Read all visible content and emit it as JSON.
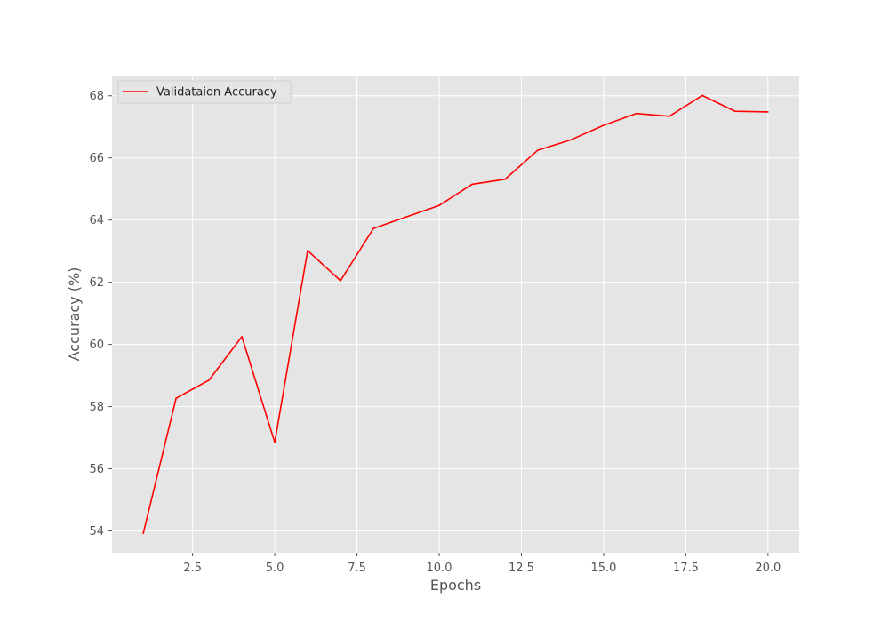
{
  "chart_data": {
    "type": "line",
    "title": "",
    "xlabel": "Epochs",
    "ylabel": "Accuracy (%)",
    "xlim": [
      0.05,
      20.95
    ],
    "ylim": [
      53.3,
      68.65
    ],
    "xticks": [
      2.5,
      5.0,
      7.5,
      10.0,
      12.5,
      15.0,
      17.5,
      20.0
    ],
    "xtick_labels": [
      "2.5",
      "5.0",
      "7.5",
      "10.0",
      "12.5",
      "15.0",
      "17.5",
      "20.0"
    ],
    "yticks": [
      54,
      56,
      58,
      60,
      62,
      64,
      66,
      68
    ],
    "ytick_labels": [
      "54",
      "56",
      "58",
      "60",
      "62",
      "64",
      "66",
      "68"
    ],
    "grid": true,
    "legend_position": "upper-left",
    "colors": {
      "plot_background": "#e5e5e5",
      "grid": "#ffffff",
      "line": "#ff0000"
    },
    "series": [
      {
        "name": "Validataion Accuracy",
        "color": "#ff0000",
        "x": [
          1,
          2,
          3,
          4,
          5,
          6,
          7,
          8,
          9,
          10,
          11,
          12,
          13,
          14,
          15,
          16,
          17,
          18,
          19,
          20
        ],
        "y": [
          53.92,
          58.27,
          58.85,
          60.25,
          56.85,
          63.02,
          62.05,
          63.73,
          64.1,
          64.47,
          65.15,
          65.31,
          66.25,
          66.58,
          67.05,
          67.43,
          67.34,
          68.01,
          67.5,
          67.48
        ]
      }
    ]
  }
}
